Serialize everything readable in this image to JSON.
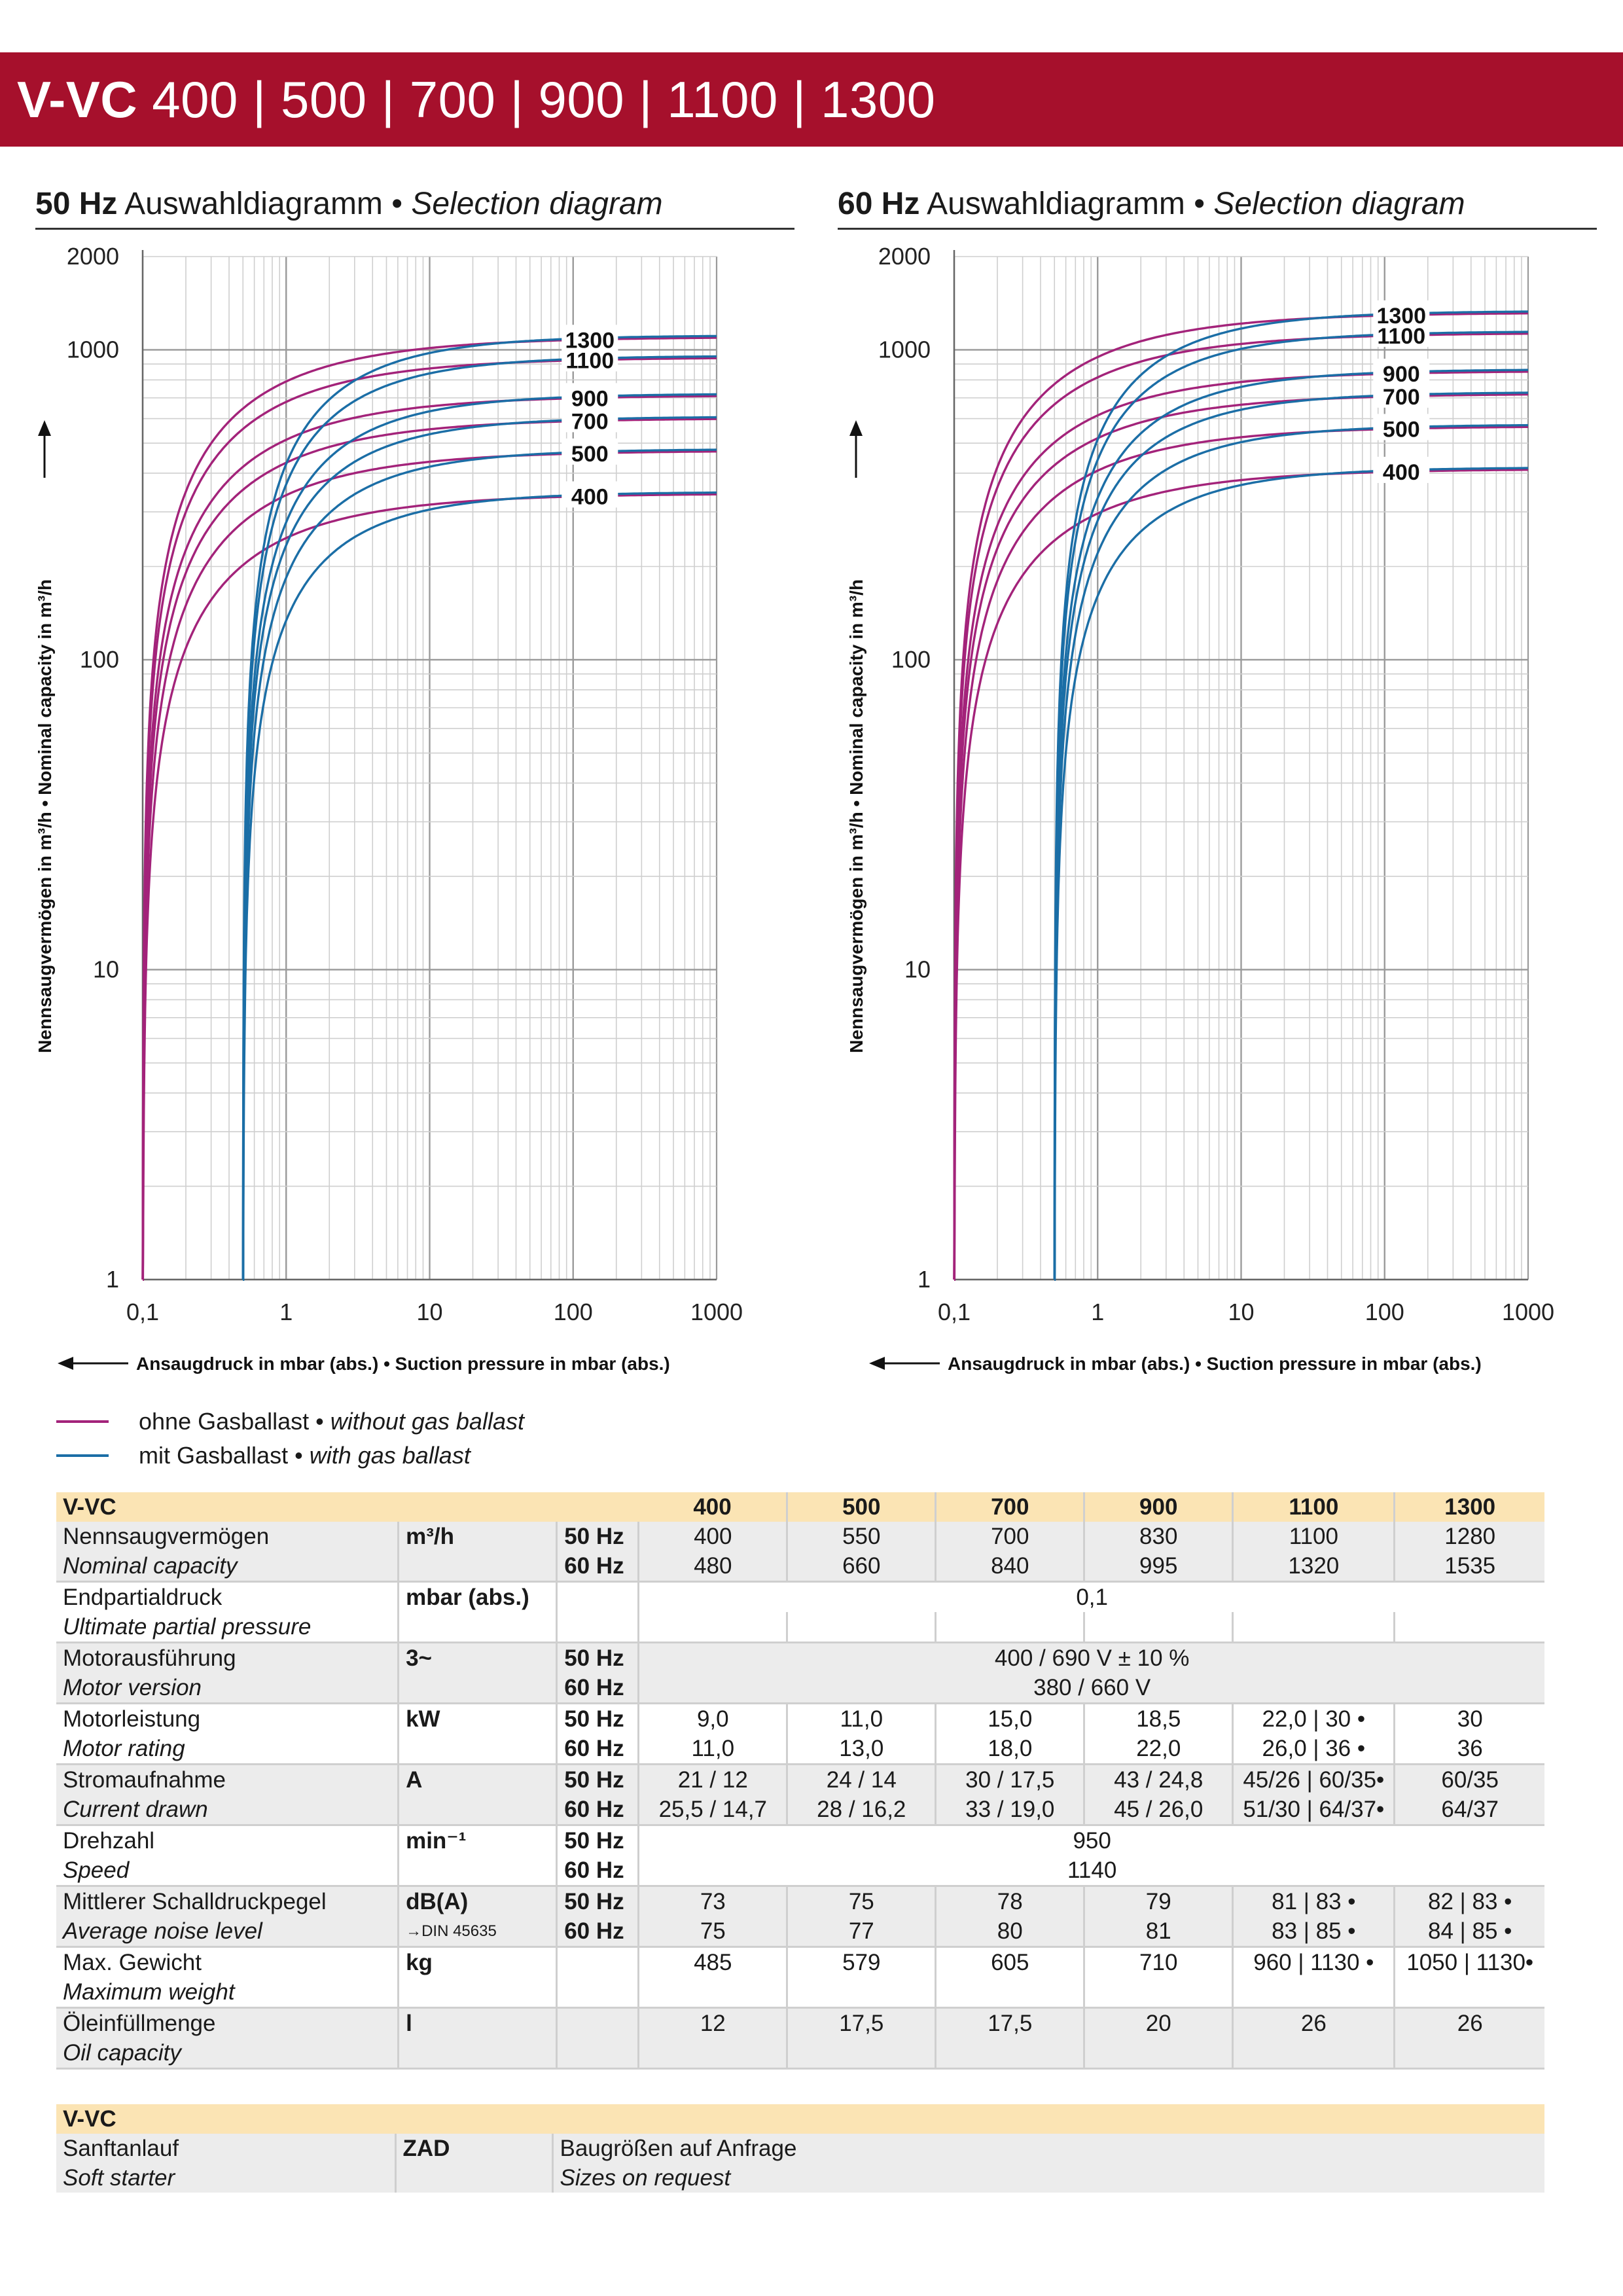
{
  "header": {
    "model_bold": "V-VC",
    "sizes": "400 | 500 | 700 | 900 | 1100 | 1300"
  },
  "panels": [
    {
      "title_bold": "50 Hz",
      "title_de": " Auswahldiagramm • ",
      "title_en": "Selection diagram"
    },
    {
      "title_bold": "60 Hz",
      "title_de": " Auswahldiagramm • ",
      "title_en": "Selection diagram"
    }
  ],
  "axes": {
    "y_label": "Nennsaugvermögen in m³/h • Nominal capacity in m³/h",
    "x_label": "Ansaugdruck in mbar (abs.) • Suction pressure in mbar (abs.)",
    "x_ticks": [
      "0,1",
      "1",
      "10",
      "100",
      "1000"
    ],
    "y_ticks": [
      "1",
      "10",
      "100",
      "1000",
      "2000"
    ]
  },
  "legend": {
    "without_de": "ohne Gasballast • ",
    "without_en": "without gas ballast",
    "with_de": "mit Gasballast • ",
    "with_en": "with gas ballast",
    "color_without": "#a3237a",
    "color_with": "#1b6ea6"
  },
  "chart_data": [
    {
      "type": "line",
      "title": "50 Hz Auswahldiagramm • Selection diagram",
      "xlabel": "Ansaugdruck in mbar (abs.) • Suction pressure in mbar (abs.)",
      "ylabel": "Nennsaugvermögen in m³/h • Nominal capacity in m³/h",
      "x_scale": "log",
      "y_scale": "log",
      "xlim": [
        0.1,
        1000
      ],
      "ylim": [
        1,
        2000
      ],
      "grid": true,
      "ultimate_pressure_without_gas_ballast": 0.1,
      "ultimate_pressure_with_gas_ballast": 0.5,
      "series_labels": [
        "400",
        "500",
        "700",
        "900",
        "1100",
        "1300"
      ],
      "nominal_capacity_at_1000_mbar": [
        400,
        550,
        700,
        830,
        1100,
        1280
      ],
      "colors": {
        "without_gas_ballast": "#a3237a",
        "with_gas_ballast": "#1b6ea6"
      }
    },
    {
      "type": "line",
      "title": "60 Hz Auswahldiagramm • Selection diagram",
      "xlabel": "Ansaugdruck in mbar (abs.) • Suction pressure in mbar (abs.)",
      "ylabel": "Nennsaugvermögen in m³/h • Nominal capacity in m³/h",
      "x_scale": "log",
      "y_scale": "log",
      "xlim": [
        0.1,
        1000
      ],
      "ylim": [
        1,
        2000
      ],
      "grid": true,
      "ultimate_pressure_without_gas_ballast": 0.1,
      "ultimate_pressure_with_gas_ballast": 0.5,
      "series_labels": [
        "400",
        "500",
        "700",
        "900",
        "1100",
        "1300"
      ],
      "nominal_capacity_at_1000_mbar": [
        480,
        660,
        840,
        995,
        1320,
        1535
      ],
      "colors": {
        "without_gas_ballast": "#a3237a",
        "with_gas_ballast": "#1b6ea6"
      }
    }
  ],
  "spec_table": {
    "header": [
      "V-VC",
      "400",
      "500",
      "700",
      "900",
      "1100",
      "1300"
    ],
    "rows": [
      {
        "de": "Nennsaugvermögen",
        "en": "Nominal capacity",
        "unit": "m³/h",
        "unit_note": "",
        "merged_line1": false,
        "merged_line2": false,
        "line1": {
          "hz": "50 Hz",
          "values": [
            "400",
            "550",
            "700",
            "830",
            "1100",
            "1280"
          ]
        },
        "line2": {
          "hz": "60 Hz",
          "values": [
            "480",
            "660",
            "840",
            "995",
            "1320",
            "1535"
          ]
        }
      },
      {
        "de": "Endpartialdruck",
        "en": "Ultimate partial pressure",
        "unit": "mbar (abs.)",
        "unit_note": "",
        "merged_line1": true,
        "merged_line2": false,
        "line1": {
          "hz": "",
          "values": [
            "0,1"
          ]
        },
        "line2": {
          "hz": "",
          "values": [
            "",
            "",
            "",
            "",
            "",
            ""
          ]
        }
      },
      {
        "de": "Motorausführung",
        "en": "Motor version",
        "unit": "3~",
        "unit_note": "",
        "merged_line1": true,
        "merged_line2": true,
        "line1": {
          "hz": "50 Hz",
          "values": [
            "400 / 690 V ± 10 %"
          ]
        },
        "line2": {
          "hz": "60 Hz",
          "values": [
            "380 / 660 V"
          ]
        }
      },
      {
        "de": "Motorleistung",
        "en": "Motor rating",
        "unit": "kW",
        "unit_note": "",
        "merged_line1": false,
        "merged_line2": false,
        "line1": {
          "hz": "50 Hz",
          "values": [
            "9,0",
            "11,0",
            "15,0",
            "18,5",
            "22,0 | 30 •",
            "30"
          ]
        },
        "line2": {
          "hz": "60 Hz",
          "values": [
            "11,0",
            "13,0",
            "18,0",
            "22,0",
            "26,0 | 36 •",
            "36"
          ]
        }
      },
      {
        "de": "Stromaufnahme",
        "en": "Current drawn",
        "unit": "A",
        "unit_note": "",
        "merged_line1": false,
        "merged_line2": false,
        "line1": {
          "hz": "50 Hz",
          "values": [
            "21 / 12",
            "24 / 14",
            "30 / 17,5",
            "43 / 24,8",
            "45/26 | 60/35•",
            "60/35"
          ]
        },
        "line2": {
          "hz": "60 Hz",
          "values": [
            "25,5 / 14,7",
            "28 / 16,2",
            "33 / 19,0",
            "45 / 26,0",
            "51/30 | 64/37•",
            "64/37"
          ]
        }
      },
      {
        "de": "Drehzahl",
        "en": "Speed",
        "unit": "min⁻¹",
        "unit_note": "",
        "merged_line1": true,
        "merged_line2": true,
        "line1": {
          "hz": "50 Hz",
          "values": [
            "950"
          ]
        },
        "line2": {
          "hz": "60 Hz",
          "values": [
            "1140"
          ]
        }
      },
      {
        "de": "Mittlerer Schalldruckpegel",
        "en": "Average noise level",
        "unit": "dB(A)",
        "unit_note": "→DIN 45635",
        "merged_line1": false,
        "merged_line2": false,
        "line1": {
          "hz": "50 Hz",
          "values": [
            "73",
            "75",
            "78",
            "79",
            "81 | 83 •",
            "82 | 83 •"
          ]
        },
        "line2": {
          "hz": "60 Hz",
          "values": [
            "75",
            "77",
            "80",
            "81",
            "83 | 85 •",
            "84 | 85 •"
          ]
        }
      },
      {
        "de": "Max. Gewicht",
        "en": "Maximum weight",
        "unit": "kg",
        "unit_note": "",
        "merged_line1": false,
        "merged_line2": false,
        "line1": {
          "hz": "",
          "values": [
            "485",
            "579",
            "605",
            "710",
            "960 | 1130 •",
            "1050 | 1130•"
          ]
        },
        "line2": {
          "hz": "",
          "values": [
            "",
            "",
            "",
            "",
            "",
            ""
          ]
        }
      },
      {
        "de": "Öleinfüllmenge",
        "en": "Oil capacity",
        "unit": "l",
        "unit_note": "",
        "merged_line1": false,
        "merged_line2": false,
        "line1": {
          "hz": "",
          "values": [
            "12",
            "17,5",
            "17,5",
            "20",
            "26",
            "26"
          ]
        },
        "line2": {
          "hz": "",
          "values": [
            "",
            "",
            "",
            "",
            "",
            ""
          ]
        }
      }
    ]
  },
  "accessory_table": {
    "header": "V-VC",
    "de": "Sanftanlauf",
    "en": "Soft starter",
    "unit": "ZAD",
    "value_de": "Baugrößen auf Anfrage",
    "value_en": "Sizes on request"
  }
}
